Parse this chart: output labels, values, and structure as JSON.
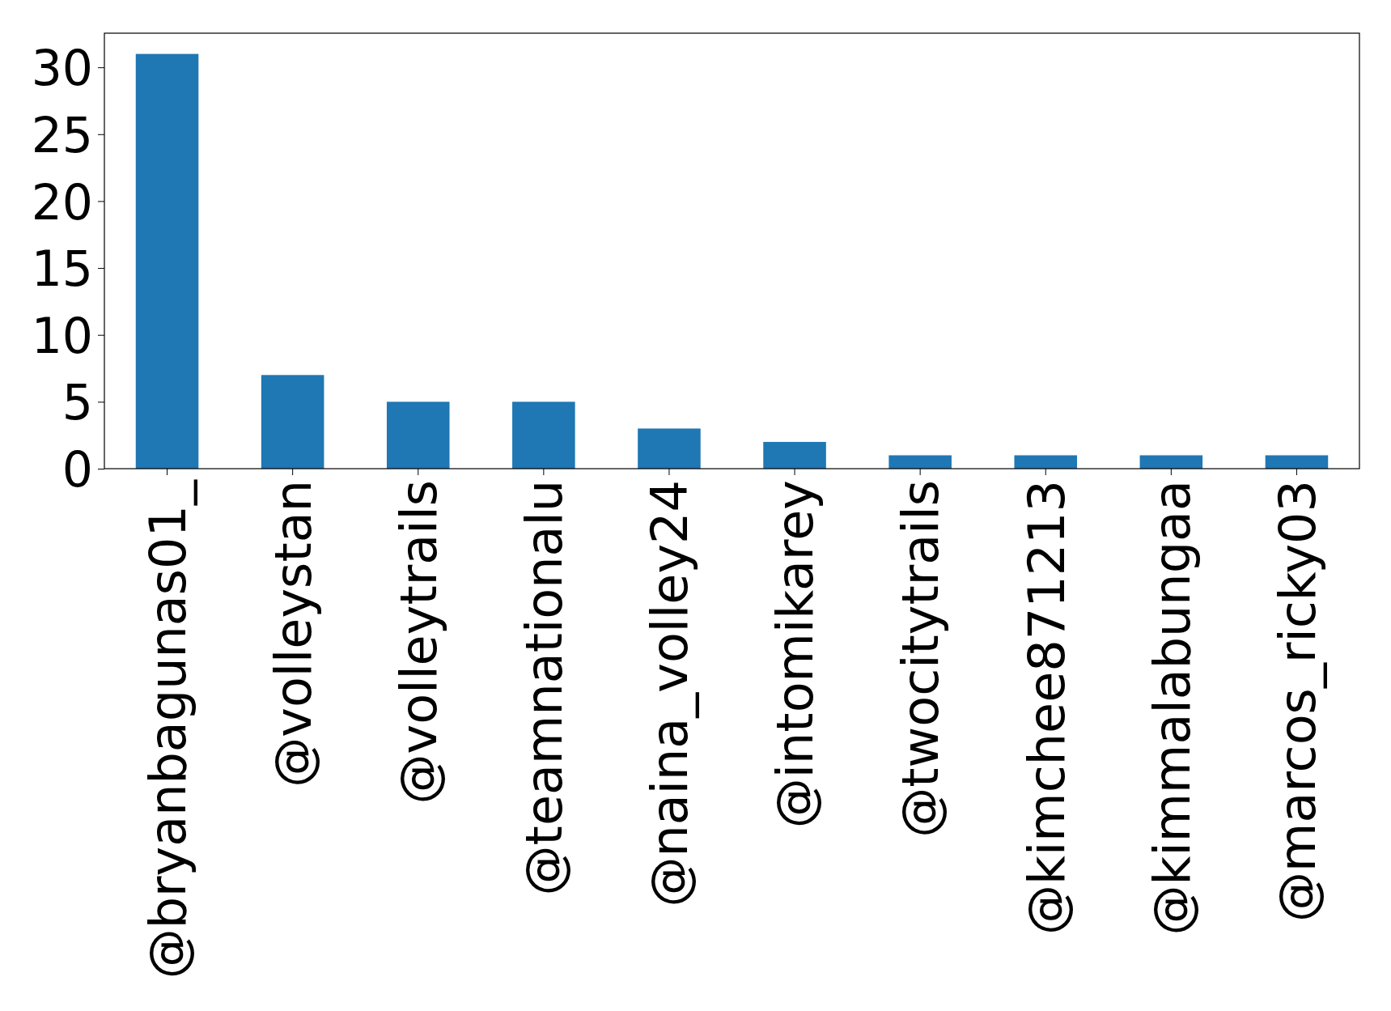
{
  "chart_data": {
    "type": "bar",
    "categories": [
      "@bryanbagunas01_",
      "@volleystan",
      "@volleytrails",
      "@teamnationalu",
      "@naina_volley24",
      "@intomikarey",
      "@twocitytrails",
      "@kimchee871213",
      "@kimmalabungaa",
      "@marcos_ricky03"
    ],
    "values": [
      31,
      7,
      5,
      5,
      3,
      2,
      1,
      1,
      1,
      1
    ],
    "color": "#1f77b4",
    "ylim": [
      0,
      32.55
    ],
    "yticks": [
      0,
      5,
      10,
      15,
      20,
      25,
      30
    ]
  }
}
